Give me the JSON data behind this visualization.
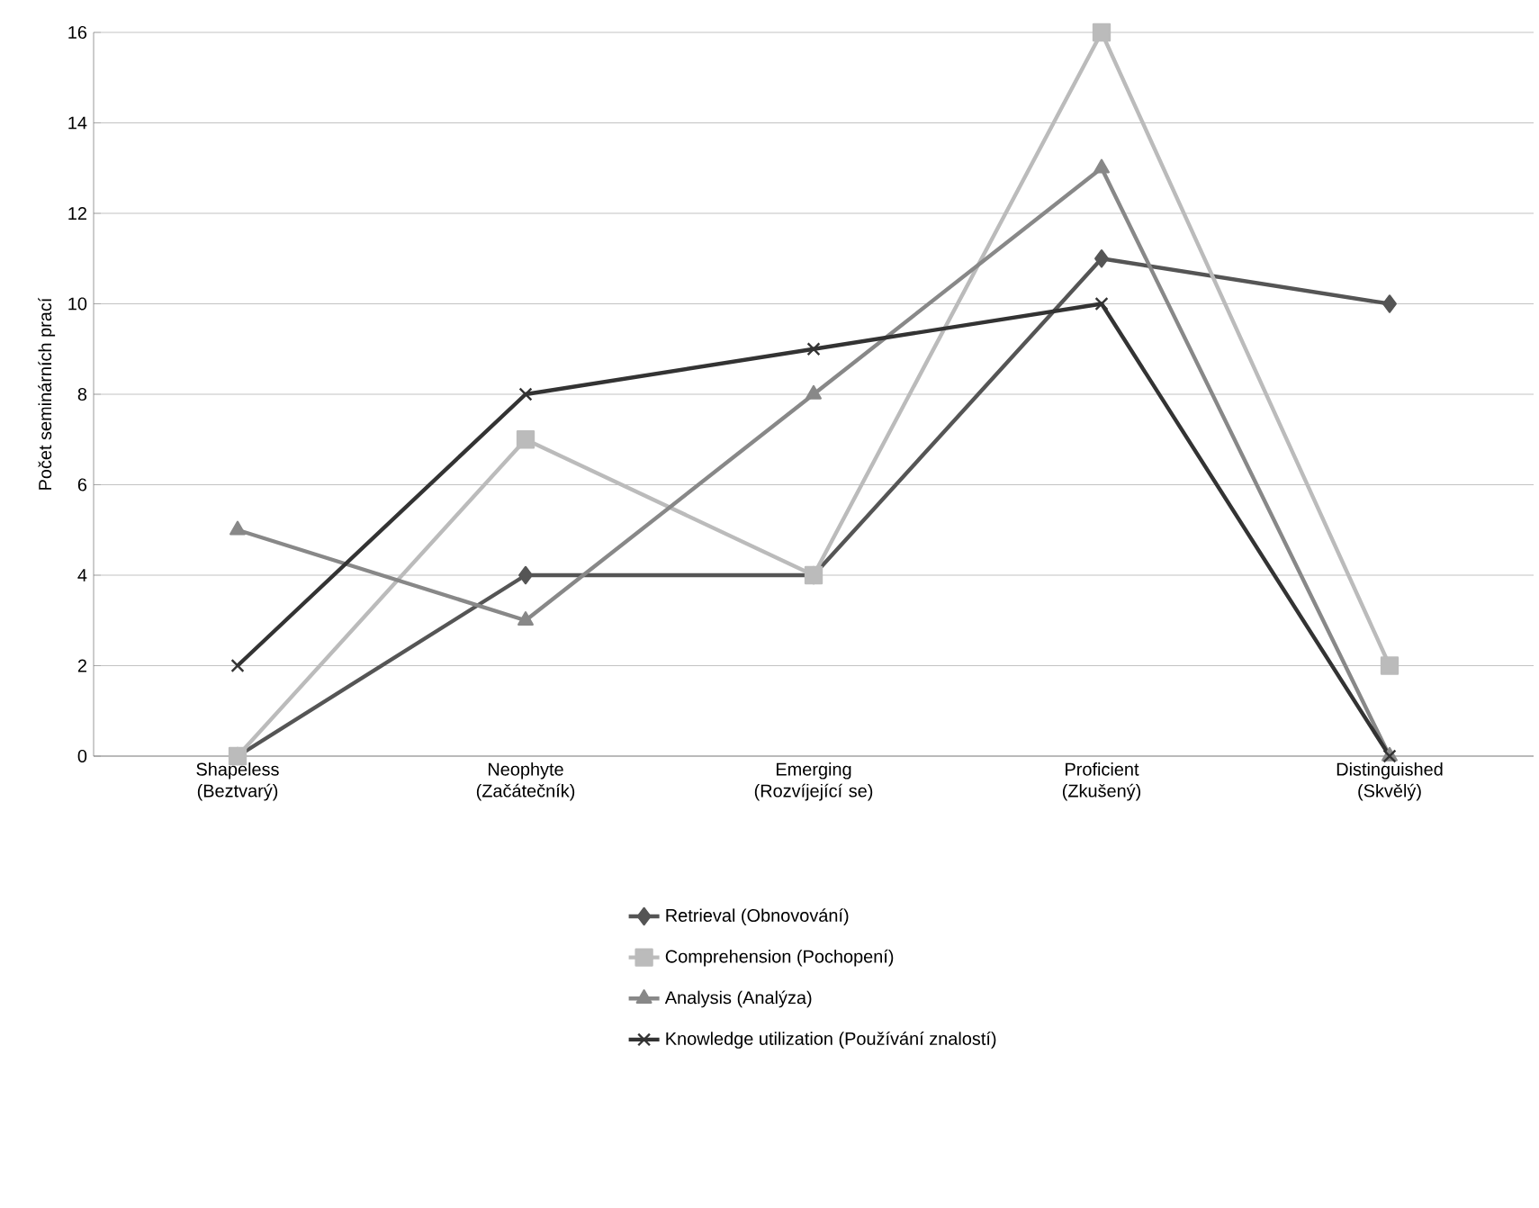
{
  "chart_data": {
    "type": "line",
    "ylabel": "Počet seminárních prací",
    "categories": [
      "Shapeless (Beztvarý)",
      "Neophyte (Začátečník)",
      "Emerging (Rozvíjející se)",
      "Proficient (Zkušený)",
      "Distinguished (Skvělý)"
    ],
    "series": [
      {
        "name": "Retrieval (Obnovování)",
        "color": "#555555",
        "marker": "diamond",
        "values": [
          0,
          4,
          4,
          11,
          10
        ]
      },
      {
        "name": "Comprehension (Pochopení)",
        "color": "#bbbbbb",
        "marker": "square",
        "values": [
          0,
          7,
          4,
          16,
          2
        ]
      },
      {
        "name": "Analysis (Analýza)",
        "color": "#888888",
        "marker": "triangle",
        "values": [
          5,
          3,
          8,
          13,
          0
        ]
      },
      {
        "name": "Knowledge utilization (Používání znalostí)",
        "color": "#333333",
        "marker": "cross",
        "values": [
          2,
          8,
          9,
          10,
          0
        ]
      }
    ],
    "ylim": [
      0,
      16
    ],
    "yticks": [
      0,
      2,
      4,
      6,
      8,
      10,
      12,
      14,
      16
    ],
    "grid": "y",
    "legend": "bottom",
    "line_style": "solid"
  }
}
